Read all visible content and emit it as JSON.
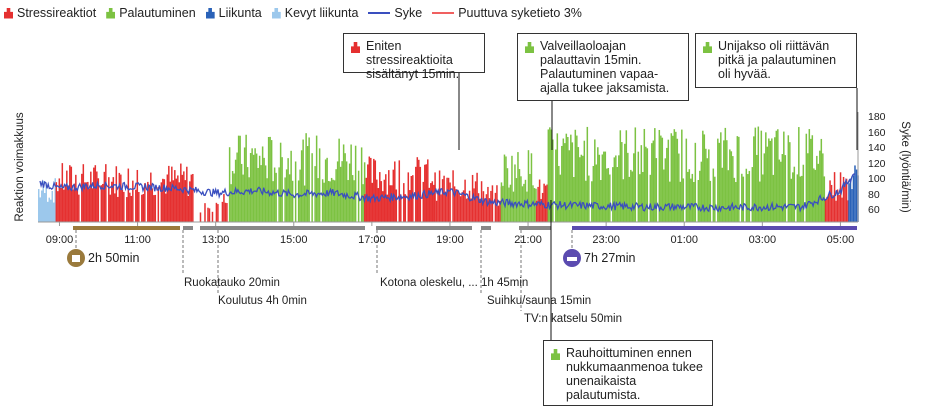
{
  "legend": [
    {
      "label": "Stressireaktiot",
      "color": "#e53030",
      "kind": "bar"
    },
    {
      "label": "Palautuminen",
      "color": "#7cc242",
      "kind": "bar"
    },
    {
      "label": "Liikunta",
      "color": "#2a62b8",
      "kind": "bar"
    },
    {
      "label": "Kevyt liikunta",
      "color": "#9cc8ec",
      "kind": "bar"
    },
    {
      "label": "Syke",
      "color": "#3a4fbf",
      "kind": "line"
    },
    {
      "label": "Puuttuva syketieto 3%",
      "color": "#f06060",
      "kind": "line"
    }
  ],
  "chart_data": {
    "type": "bar",
    "title": "",
    "ylabel": "Reaktion voimakkuus",
    "y2label": "Syke (lyöntiä/min)",
    "y2ticks": [
      "60",
      "80",
      "100",
      "120",
      "140",
      "160",
      "180"
    ],
    "y2lim": [
      50,
      185
    ],
    "xticks": [
      "09:00",
      "11:00",
      "13:00",
      "15:00",
      "17:00",
      "19:00",
      "21:00",
      "23:00",
      "01:00",
      "03:00",
      "05:00"
    ],
    "xtick_hours": [
      9,
      11,
      13,
      15,
      17,
      19,
      21,
      23,
      25,
      27,
      29
    ],
    "xlim_hours": [
      8.45,
      29.45
    ],
    "segments": [
      {
        "from": 8.45,
        "to": 8.9,
        "type": "light",
        "level": 0.3
      },
      {
        "from": 8.9,
        "to": 12.4,
        "type": "stress",
        "level": 0.4
      },
      {
        "from": 12.4,
        "to": 13.0,
        "type": "mixed",
        "level": 0.15
      },
      {
        "from": 13.0,
        "to": 13.3,
        "type": "stress",
        "level": 0.2
      },
      {
        "from": 13.3,
        "to": 16.8,
        "type": "recovery",
        "level": 0.6
      },
      {
        "from": 16.8,
        "to": 18.6,
        "type": "stress",
        "level": 0.45
      },
      {
        "from": 18.6,
        "to": 19.8,
        "type": "stress",
        "level": 0.35
      },
      {
        "from": 19.8,
        "to": 20.3,
        "type": "stress",
        "level": 0.25
      },
      {
        "from": 20.3,
        "to": 21.2,
        "type": "recovery",
        "level": 0.5
      },
      {
        "from": 21.2,
        "to": 21.5,
        "type": "stress",
        "level": 0.3
      },
      {
        "from": 21.5,
        "to": 28.6,
        "type": "recovery",
        "level": 0.65
      },
      {
        "from": 28.6,
        "to": 29.2,
        "type": "stress",
        "level": 0.35
      },
      {
        "from": 29.2,
        "to": 29.45,
        "type": "exercise",
        "level": 0.4
      }
    ],
    "heart_rate": {
      "hours": [
        8.5,
        9,
        10,
        11,
        12,
        13,
        14,
        15,
        16,
        17,
        18,
        19,
        20,
        21,
        22,
        23,
        24,
        25,
        26,
        27,
        28,
        29,
        29.4
      ],
      "bpm": [
        95,
        88,
        92,
        90,
        88,
        82,
        85,
        80,
        82,
        75,
        78,
        84,
        70,
        68,
        66,
        65,
        64,
        64,
        63,
        64,
        64,
        85,
        110
      ]
    }
  },
  "callouts": [
    {
      "text": "Eniten stressireaktioita sisältänyt 15min.",
      "type": "stress"
    },
    {
      "text": "Valveillaoloajan palauttavin 15min. Palautuminen vapaa-ajalla tukee jaksamista.",
      "type": "recovery"
    },
    {
      "text": "Unijakso oli riittävän pitkä ja palautuminen oli hyvää.",
      "type": "recovery"
    },
    {
      "text": "Rauhoittuminen ennen nukkumaanmenoa tukee unenaikaista palautumista.",
      "type": "recovery"
    }
  ],
  "work": {
    "duration": "2h 50min"
  },
  "sleep": {
    "duration": "7h 27min"
  },
  "activities": [
    {
      "label": "Ruokatauko 20min"
    },
    {
      "label": "Koulutus 4h 0min"
    },
    {
      "label": "Kotona oleskelu, ... 1h 45min"
    },
    {
      "label": "Suihku/sauna 15min"
    },
    {
      "label": "TV:n katselu 50min"
    }
  ]
}
